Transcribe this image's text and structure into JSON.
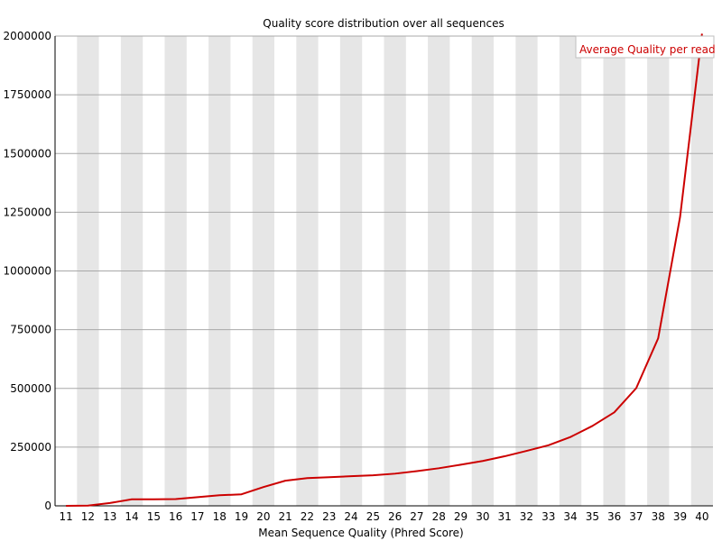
{
  "chart_data": {
    "type": "line",
    "title": "Quality score distribution over all sequences",
    "xlabel": "Mean Sequence Quality (Phred Score)",
    "ylabel": "",
    "x": [
      11,
      12,
      13,
      14,
      15,
      16,
      17,
      18,
      19,
      20,
      21,
      22,
      23,
      24,
      25,
      26,
      27,
      28,
      29,
      30,
      31,
      32,
      33,
      34,
      35,
      36,
      37,
      38,
      39,
      40
    ],
    "ylim": [
      0,
      2000000
    ],
    "yticks": [
      0,
      250000,
      500000,
      750000,
      1000000,
      1250000,
      1500000,
      1750000,
      2000000
    ],
    "ytick_labels": [
      "0",
      "250000",
      "500000",
      "750000",
      "1000000",
      "1250000",
      "1500000",
      "1750000",
      "2000000"
    ],
    "series": [
      {
        "name": "Average Quality per read",
        "color": "#cc0000",
        "values": [
          0,
          1000,
          12000,
          28000,
          28000,
          29000,
          37000,
          45000,
          49000,
          80000,
          107000,
          118000,
          122000,
          126000,
          130000,
          137000,
          148000,
          160000,
          175000,
          191000,
          211000,
          234000,
          258000,
          293000,
          340000,
          398000,
          501000,
          713000,
          1230000,
          2010000
        ]
      }
    ],
    "grid": true,
    "striped_background": true,
    "legend_position": "top-right"
  }
}
